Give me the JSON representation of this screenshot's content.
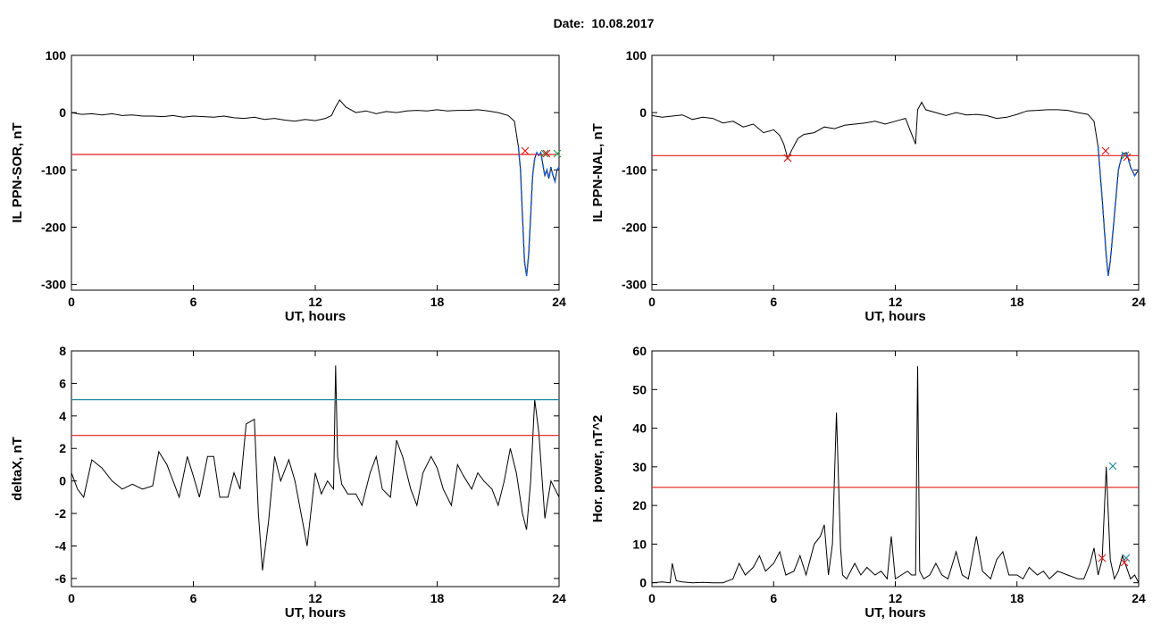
{
  "title": "Date:  10.08.2017",
  "colors": {
    "trace": "#000000",
    "threshold": "#e31a1c",
    "threshold2": "#1f8ca0",
    "fit": "#1f5fd0",
    "marker_a": "#e31a1c",
    "marker_b": "#27a050",
    "marker_c": "#1f8ca0"
  },
  "chart_data": [
    {
      "type": "line",
      "xlabel": "UT, hours",
      "ylabel": "IL PPN-SOR, nT",
      "xlim": [
        0,
        24
      ],
      "ylim": [
        -310,
        100
      ],
      "xticks": [
        "0",
        "6",
        "12",
        "18",
        "24"
      ],
      "yticks": [
        "100",
        "0",
        "-100",
        "-200",
        "-300"
      ],
      "grid": false,
      "series": [
        {
          "x": [
            0.0,
            0.5,
            1.0,
            1.5,
            2.0,
            2.5,
            3.0,
            3.5,
            4.0,
            4.5,
            5.0,
            5.5,
            6.0,
            6.5,
            7.0,
            7.5,
            8.0,
            8.5,
            9.0,
            9.5,
            10.0,
            10.5,
            11.0,
            11.5,
            12.0,
            12.5,
            12.8,
            13.0,
            13.2,
            13.5,
            14.0,
            14.5,
            15.0,
            15.5,
            16.0,
            16.5,
            17.0,
            17.5,
            18.0,
            18.5,
            19.0,
            19.5,
            20.0,
            20.5,
            21.0,
            21.5,
            21.8,
            22.0,
            22.1,
            22.2,
            22.3,
            22.4,
            22.5,
            22.6,
            22.7,
            22.8,
            22.9,
            23.0,
            23.1,
            23.2,
            23.3,
            23.4,
            23.5,
            23.6,
            23.7,
            23.8,
            23.9,
            24.0
          ],
          "y": [
            0,
            -3,
            -2,
            -4,
            -2,
            -5,
            -4,
            -6,
            -6,
            -7,
            -5,
            -8,
            -6,
            -7,
            -8,
            -6,
            -9,
            -10,
            -8,
            -12,
            -10,
            -13,
            -15,
            -12,
            -14,
            -10,
            -5,
            10,
            22,
            10,
            0,
            3,
            -2,
            2,
            0,
            3,
            4,
            3,
            5,
            3,
            4,
            4,
            5,
            3,
            0,
            -5,
            -15,
            -60,
            -100,
            -180,
            -260,
            -285,
            -250,
            -180,
            -110,
            -80,
            -70,
            -75,
            -70,
            -90,
            -110,
            -100,
            -115,
            -95,
            -110,
            -120,
            -100,
            -95
          ]
        },
        {
          "name": "",
          "x": [
            0,
            24
          ],
          "y": [
            -73,
            -73
          ]
        }
      ]
    },
    {
      "type": "line",
      "xlabel": "UT, hours",
      "ylabel": "IL PPN-NAL, nT",
      "xlim": [
        0,
        24
      ],
      "ylim": [
        -310,
        100
      ],
      "xticks": [
        "0",
        "6",
        "12",
        "18",
        "24"
      ],
      "yticks": [
        "100",
        "0",
        "-100",
        "-200",
        "-300"
      ],
      "grid": false,
      "series": [
        {
          "x": [
            0.0,
            0.5,
            1.0,
            1.5,
            2.0,
            2.5,
            3.0,
            3.5,
            4.0,
            4.5,
            5.0,
            5.5,
            6.0,
            6.3,
            6.5,
            6.7,
            6.9,
            7.2,
            7.5,
            8.0,
            8.5,
            9.0,
            9.5,
            10.0,
            10.5,
            11.0,
            11.5,
            12.0,
            12.5,
            13.0,
            13.1,
            13.3,
            13.5,
            14.0,
            14.5,
            15.0,
            15.5,
            16.0,
            16.5,
            17.0,
            17.5,
            18.0,
            18.5,
            19.0,
            19.5,
            20.0,
            20.5,
            21.0,
            21.5,
            21.8,
            22.0,
            22.2,
            22.4,
            22.5,
            22.6,
            22.8,
            23.0,
            23.2,
            23.4,
            23.6,
            23.8,
            24.0
          ],
          "y": [
            -5,
            -8,
            -6,
            -4,
            -12,
            -8,
            -10,
            -18,
            -15,
            -25,
            -20,
            -35,
            -30,
            -40,
            -55,
            -80,
            -65,
            -45,
            -38,
            -35,
            -25,
            -28,
            -22,
            -20,
            -18,
            -15,
            -20,
            -15,
            -10,
            -55,
            5,
            18,
            5,
            0,
            -5,
            0,
            -4,
            -3,
            -5,
            -10,
            -8,
            -3,
            3,
            4,
            5,
            5,
            4,
            0,
            -3,
            -15,
            -60,
            -150,
            -250,
            -285,
            -260,
            -180,
            -100,
            -72,
            -70,
            -95,
            -110,
            -100
          ]
        },
        {
          "name": "",
          "x": [
            0,
            24
          ],
          "y": [
            -75,
            -75
          ]
        }
      ]
    },
    {
      "type": "line",
      "xlabel": "UT, hours",
      "ylabel": "deltaX, nT",
      "xlim": [
        0,
        24
      ],
      "ylim": [
        -6.5,
        8
      ],
      "xticks": [
        "0",
        "6",
        "12",
        "18",
        "24"
      ],
      "yticks": [
        "8",
        "6",
        "4",
        "2",
        "0",
        "-2",
        "-4",
        "-6"
      ],
      "grid": false,
      "series": [
        {
          "x": [
            0.0,
            0.3,
            0.6,
            1.0,
            1.5,
            2.0,
            2.5,
            3.0,
            3.5,
            4.0,
            4.3,
            4.7,
            5.0,
            5.3,
            5.7,
            6.0,
            6.3,
            6.7,
            7.0,
            7.3,
            7.7,
            8.0,
            8.3,
            8.6,
            9.0,
            9.2,
            9.4,
            9.7,
            10.0,
            10.3,
            10.7,
            11.0,
            11.3,
            11.6,
            12.0,
            12.3,
            12.6,
            12.9,
            13.0,
            13.1,
            13.3,
            13.6,
            14.0,
            14.3,
            14.7,
            15.0,
            15.3,
            15.7,
            16.0,
            16.3,
            16.7,
            17.0,
            17.3,
            17.7,
            18.0,
            18.3,
            18.7,
            19.0,
            19.3,
            19.7,
            20.0,
            20.3,
            20.7,
            21.0,
            21.3,
            21.6,
            21.9,
            22.2,
            22.4,
            22.6,
            22.8,
            23.0,
            23.3,
            23.6,
            24.0
          ],
          "y": [
            0.5,
            -0.5,
            -1,
            1.3,
            0.8,
            0,
            -0.5,
            -0.2,
            -0.5,
            -0.3,
            1.8,
            1.0,
            0,
            -1,
            1.5,
            0.3,
            -1,
            1.5,
            1.5,
            -1,
            -1,
            0.5,
            -0.5,
            3.5,
            3.8,
            -2,
            -5.5,
            -2.5,
            1.5,
            0,
            1.3,
            0,
            -2,
            -4,
            0.5,
            -0.8,
            0,
            -0.5,
            7.1,
            1.5,
            -0.2,
            -0.8,
            -0.8,
            -1.5,
            0.5,
            1.5,
            -0.5,
            -1,
            2.5,
            1.5,
            -0.5,
            -1.5,
            0.5,
            1.5,
            0.8,
            -0.5,
            -1.5,
            1,
            0.3,
            -0.5,
            0.5,
            0,
            -0.5,
            -1.5,
            0,
            2.0,
            0.5,
            -2,
            -3,
            0,
            5,
            3,
            -2.3,
            0,
            -1
          ]
        },
        {
          "name": "",
          "x": [
            0,
            24
          ],
          "y": [
            5,
            5
          ]
        },
        {
          "name": "",
          "x": [
            0,
            24
          ],
          "y": [
            2.8,
            2.8
          ]
        }
      ]
    },
    {
      "type": "line",
      "xlabel": "UT, hours",
      "ylabel": "Hor. power, nT^2",
      "xlim": [
        0,
        24
      ],
      "ylim": [
        -1,
        60
      ],
      "xticks": [
        "0",
        "6",
        "12",
        "18",
        "24"
      ],
      "yticks": [
        "60",
        "50",
        "40",
        "30",
        "20",
        "10",
        "0"
      ],
      "grid": false,
      "series": [
        {
          "x": [
            0.0,
            0.5,
            0.9,
            1.0,
            1.2,
            1.5,
            2.0,
            2.5,
            3.0,
            3.5,
            4.0,
            4.3,
            4.6,
            5.0,
            5.3,
            5.6,
            6.0,
            6.3,
            6.6,
            7.0,
            7.3,
            7.6,
            8.0,
            8.3,
            8.5,
            8.7,
            8.9,
            9.1,
            9.3,
            9.4,
            9.6,
            10.0,
            10.3,
            10.6,
            11.0,
            11.3,
            11.6,
            11.8,
            12.0,
            12.3,
            12.6,
            12.8,
            13.0,
            13.1,
            13.2,
            13.4,
            13.7,
            14.0,
            14.3,
            14.6,
            15.0,
            15.3,
            15.6,
            16.0,
            16.3,
            16.5,
            16.7,
            17.0,
            17.3,
            17.6,
            18.0,
            18.3,
            18.6,
            19.0,
            19.3,
            19.6,
            20.0,
            20.5,
            21.0,
            21.3,
            21.6,
            21.8,
            22.0,
            22.2,
            22.4,
            22.6,
            22.8,
            23.0,
            23.2,
            23.4,
            23.6,
            23.8,
            24.0
          ],
          "y": [
            0,
            0.2,
            0,
            5,
            0.5,
            0.2,
            0,
            0.1,
            0,
            0,
            1,
            5,
            2,
            4,
            7,
            3,
            5,
            8,
            2,
            3,
            7,
            2,
            10,
            12,
            15,
            2,
            10,
            44,
            9,
            2,
            1,
            5,
            2,
            4,
            2,
            3,
            1,
            12,
            1,
            2,
            3,
            2,
            2,
            56,
            3,
            1,
            2,
            5,
            2,
            1,
            8,
            2,
            1,
            12,
            3,
            2,
            1,
            6,
            8,
            2,
            2,
            1,
            4,
            2,
            3,
            1,
            3,
            2,
            1,
            1,
            5,
            9,
            2,
            6,
            30,
            6,
            1,
            3,
            7,
            4,
            1,
            2,
            0
          ]
        },
        {
          "name": "",
          "x": [
            0,
            24
          ],
          "y": [
            24.7,
            24.7
          ]
        }
      ]
    }
  ]
}
